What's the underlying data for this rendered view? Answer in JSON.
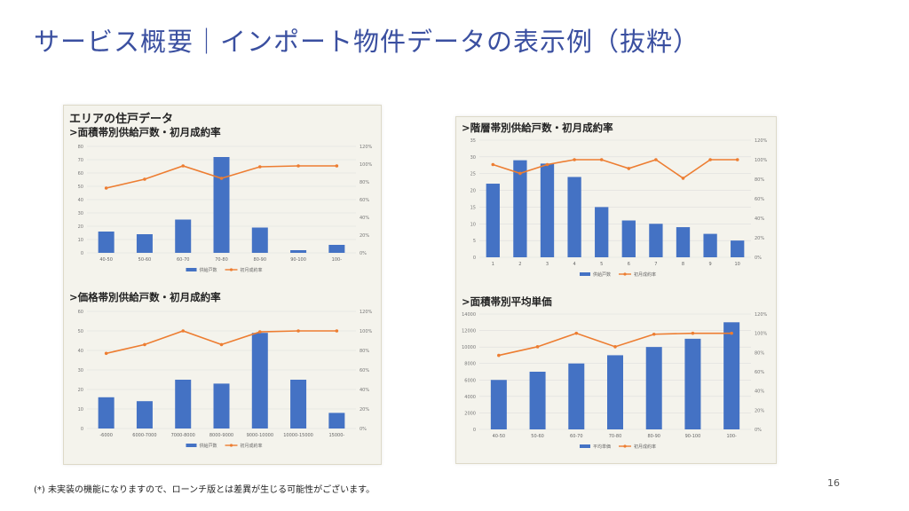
{
  "slide": {
    "title": "サービス概要｜インポート物件データの表示例（抜粋）",
    "footnote": "(*) 未実装の機能になりますので、ローンチ版とは差異が生じる可能性がございます。",
    "page_number": "16"
  },
  "panels": {
    "left_heading": "エリアの住戸データ"
  },
  "colors": {
    "bar": "#4472c4",
    "line": "#ed7d31",
    "title": "#3a4fa0"
  },
  "chart_data": [
    {
      "type": "bar",
      "title": ">面積帯別供給戸数・初月成約率",
      "categories": [
        "40-50",
        "50-60",
        "60-70",
        "70-80",
        "80-90",
        "90-100",
        "100-"
      ],
      "series": [
        {
          "name": "供給戸数",
          "type": "bar",
          "axis": "left",
          "values": [
            16,
            14,
            25,
            72,
            19,
            2,
            6
          ]
        },
        {
          "name": "初月成約率",
          "type": "line",
          "axis": "right",
          "values": [
            73,
            83,
            98,
            84,
            97,
            98,
            98
          ]
        }
      ],
      "ylim": [
        0,
        80
      ],
      "yticks": [
        0,
        10,
        20,
        30,
        40,
        50,
        60,
        70,
        80
      ],
      "y2lim": [
        0,
        120
      ],
      "y2ticks": [
        "0%",
        "20%",
        "40%",
        "60%",
        "80%",
        "100%",
        "120%"
      ],
      "legend": "bottom",
      "grid": true
    },
    {
      "type": "bar",
      "title": ">階層帯別供給戸数・初月成約率",
      "categories": [
        "1",
        "2",
        "3",
        "4",
        "5",
        "6",
        "7",
        "8",
        "9",
        "10"
      ],
      "series": [
        {
          "name": "供給戸数",
          "type": "bar",
          "axis": "left",
          "values": [
            22,
            29,
            28,
            24,
            15,
            11,
            10,
            9,
            7,
            5
          ]
        },
        {
          "name": "初月成約率",
          "type": "line",
          "axis": "right",
          "values": [
            95,
            86,
            95,
            100,
            100,
            91,
            100,
            81,
            100,
            100
          ]
        }
      ],
      "ylim": [
        0,
        35
      ],
      "yticks": [
        0,
        5,
        10,
        15,
        20,
        25,
        30,
        35
      ],
      "y2lim": [
        0,
        120
      ],
      "y2ticks": [
        "0%",
        "20%",
        "40%",
        "60%",
        "80%",
        "100%",
        "120%"
      ],
      "legend": "bottom",
      "grid": true
    },
    {
      "type": "bar",
      "title": ">価格帯別供給戸数・初月成約率",
      "categories": [
        "-6000",
        "6000-7000",
        "7000-8000",
        "8000-9000",
        "9000-10000",
        "10000-15000",
        "15000-"
      ],
      "series": [
        {
          "name": "供給戸数",
          "type": "bar",
          "axis": "left",
          "values": [
            16,
            14,
            25,
            23,
            49,
            25,
            8
          ]
        },
        {
          "name": "初月成約率",
          "type": "line",
          "axis": "right",
          "values": [
            77,
            86,
            100,
            86,
            99,
            100,
            100
          ]
        }
      ],
      "ylim": [
        0,
        60
      ],
      "yticks": [
        0,
        10,
        20,
        30,
        40,
        50,
        60
      ],
      "y2lim": [
        0,
        120
      ],
      "y2ticks": [
        "0%",
        "20%",
        "40%",
        "60%",
        "80%",
        "100%",
        "120%"
      ],
      "legend": "bottom",
      "grid": true
    },
    {
      "type": "bar",
      "title": ">面積帯別平均単価",
      "categories": [
        "40-50",
        "50-60",
        "60-70",
        "70-80",
        "80-90",
        "90-100",
        "100-"
      ],
      "series": [
        {
          "name": "平均単価",
          "type": "bar",
          "axis": "left",
          "values": [
            6000,
            7000,
            8000,
            9000,
            10000,
            11000,
            13000
          ]
        },
        {
          "name": "初月成約率",
          "type": "line",
          "axis": "right",
          "values": [
            77,
            86,
            100,
            86,
            99,
            100,
            100
          ]
        }
      ],
      "ylim": [
        0,
        14000
      ],
      "yticks": [
        0,
        2000,
        4000,
        6000,
        8000,
        10000,
        12000,
        14000
      ],
      "y2lim": [
        0,
        120
      ],
      "y2ticks": [
        "0%",
        "20%",
        "40%",
        "60%",
        "80%",
        "100%",
        "120%"
      ],
      "legend": "bottom",
      "grid": true
    }
  ]
}
